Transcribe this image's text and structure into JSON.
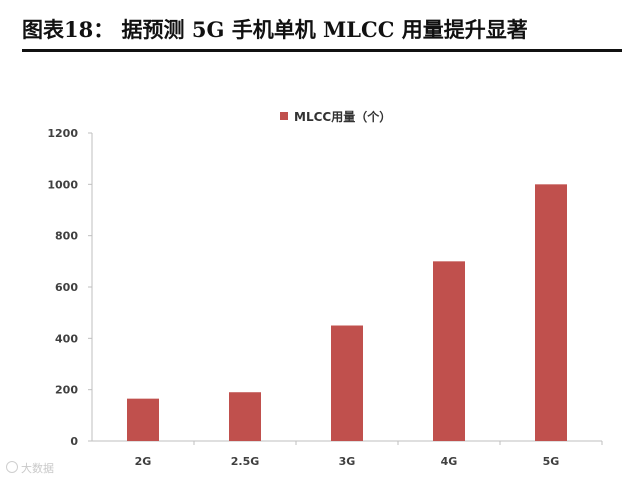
{
  "figure": {
    "title": "图表18：   据预测 5G 手机单机 MLCC 用量提升显著"
  },
  "colors": {
    "bar": "#c0504d",
    "axis": "#bfbfbf",
    "text": "#404040"
  },
  "watermark": {
    "icon": "logo-icon",
    "text": "大数据"
  },
  "chart_data": {
    "type": "bar",
    "categories": [
      "2G",
      "2.5G",
      "3G",
      "4G",
      "5G"
    ],
    "series": [
      {
        "name": "MLCC用量（个）",
        "values": [
          165,
          190,
          450,
          700,
          1000
        ]
      }
    ],
    "title": "",
    "xlabel": "",
    "ylabel": "",
    "ylim": [
      0,
      1200
    ],
    "yticks": [
      0,
      200,
      400,
      600,
      800,
      1000,
      1200
    ],
    "grid": false,
    "legend": "top-center"
  }
}
